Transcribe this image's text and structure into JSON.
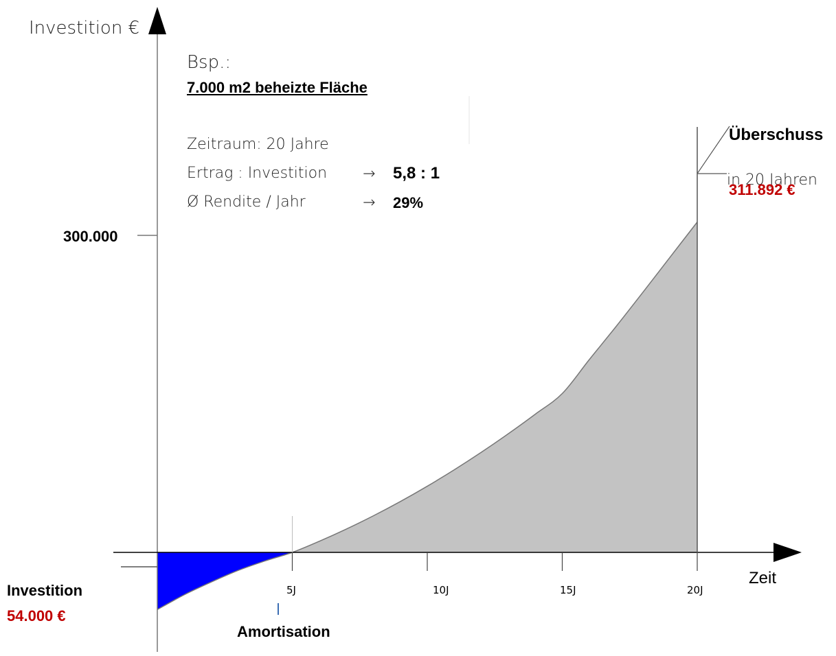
{
  "chart_data": {
    "type": "area",
    "ylabel": "Investition €",
    "xlabel": "Zeit",
    "x_ticks": [
      "5J",
      "10J",
      "15J",
      "20J"
    ],
    "y_ticks": [
      "300.000"
    ],
    "xlim": [
      0,
      22
    ],
    "ylim": [
      -54000,
      400000
    ],
    "series": [
      {
        "x": [
          0,
          1,
          2,
          3,
          4,
          5,
          6,
          7,
          8,
          9,
          10,
          11,
          12,
          13,
          14,
          15,
          16,
          17,
          18,
          19,
          20
        ],
        "values": [
          -54000,
          -40000,
          -28000,
          -17000,
          -8000,
          0,
          10500,
          22000,
          34500,
          48000,
          62500,
          78000,
          94500,
          112000,
          130500,
          150000,
          182000,
          213500,
          246000,
          279000,
          311892
        ]
      }
    ],
    "negative_color": "#0000ff",
    "positive_color": "#c3c3c3",
    "grid": false
  },
  "info": {
    "bsp": "Bsp.:",
    "area": "7.000 m2 beheizte Fläche",
    "zeitraum": "Zeitraum: 20 Jahre",
    "ertrag_label": "Ertrag : Investition",
    "ertrag_value": "5,8 : 1",
    "rendite_label": "Ø Rendite / Jahr",
    "rendite_value": "29%",
    "arrow": "→"
  },
  "annotations": {
    "ueberschuss_title": "Überschuss",
    "ueberschuss_sub": "in 20 Jahren",
    "ueberschuss_value": "311.892 €",
    "investition_title": "Investition",
    "investition_value": "54.000 €",
    "amortisation": "Amortisation"
  }
}
